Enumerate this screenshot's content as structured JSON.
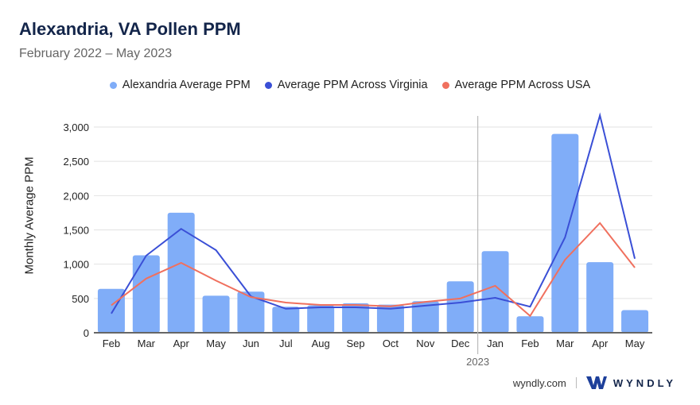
{
  "header": {
    "title": "Alexandria, VA Pollen PPM",
    "subtitle": "February 2022 – May 2023"
  },
  "footer": {
    "site": "wyndly.com",
    "brand": "WYNDLY"
  },
  "colors": {
    "bars": "#80adf8",
    "virginia": "#3a4fd6",
    "usa": "#f0705e"
  },
  "chart_data": {
    "type": "bar",
    "ylabel": "Monthly Average PPM",
    "ylim": [
      0,
      3000
    ],
    "yticks": [
      "0",
      "500",
      "1,000",
      "1,500",
      "2,000",
      "2,500",
      "3,000"
    ],
    "categories": [
      "Feb",
      "Mar",
      "Apr",
      "May",
      "Jun",
      "Jul",
      "Aug",
      "Sep",
      "Oct",
      "Nov",
      "Dec",
      "Jan",
      "Feb",
      "Mar",
      "Apr",
      "May"
    ],
    "year_marker": {
      "label": "2023",
      "before_index": 11
    },
    "grid": true,
    "legend": "top",
    "series": [
      {
        "name": "Alexandria Average PPM",
        "type": "bar",
        "values": [
          640,
          1130,
          1750,
          540,
          600,
          380,
          400,
          430,
          410,
          460,
          750,
          1190,
          240,
          2900,
          1030,
          330
        ]
      },
      {
        "name": "Average PPM Across Virginia",
        "type": "line",
        "values": [
          280,
          1125,
          1515,
          1205,
          530,
          350,
          370,
          370,
          350,
          395,
          440,
          510,
          380,
          1390,
          3170,
          1080
        ]
      },
      {
        "name": "Average PPM Across USA",
        "type": "line",
        "values": [
          400,
          790,
          1020,
          760,
          520,
          440,
          405,
          405,
          385,
          450,
          500,
          685,
          245,
          1065,
          1600,
          950
        ]
      }
    ]
  }
}
